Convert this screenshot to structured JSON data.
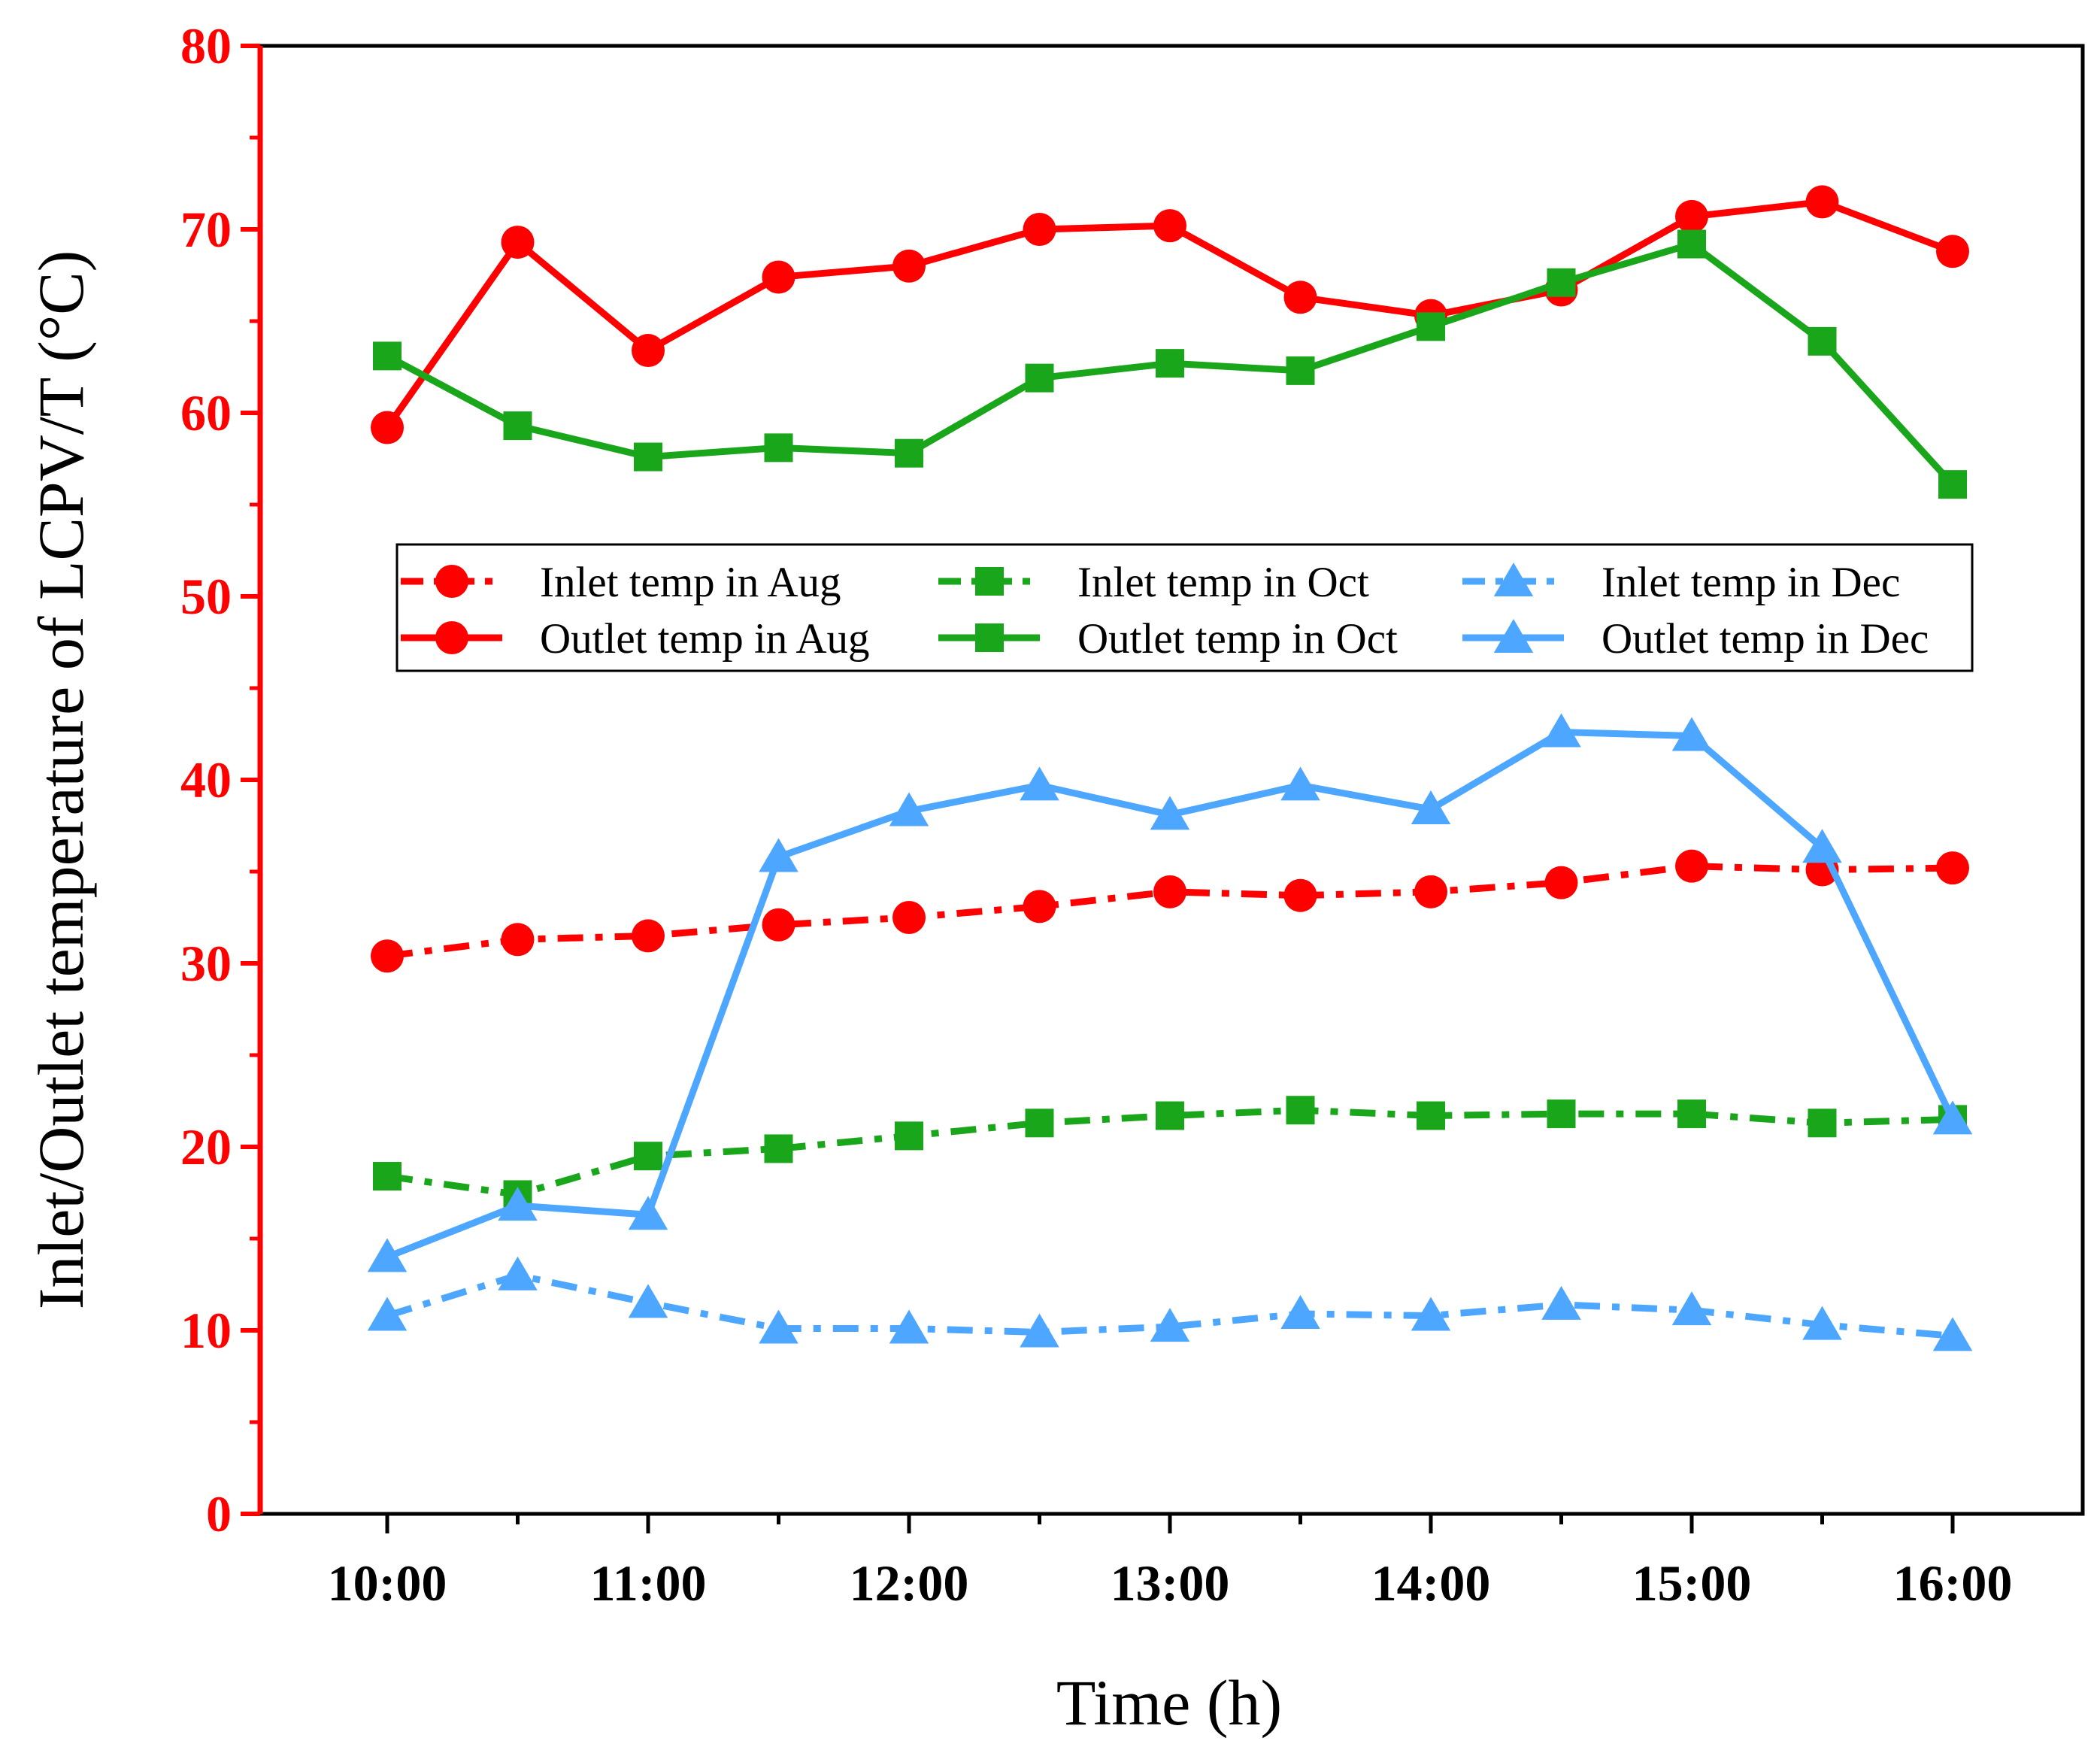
{
  "chart_data": {
    "type": "line",
    "xlabel": "Time (h)",
    "ylabel": "Inlet/Outlet temperature of LCPV/T  (°C)",
    "x": [
      "10:00",
      "10:30",
      "11:00",
      "11:30",
      "12:00",
      "12:30",
      "13:00",
      "13:30",
      "14:00",
      "14:30",
      "15:00",
      "15:30",
      "16:00"
    ],
    "x_tick_labels": [
      "10:00",
      "11:00",
      "12:00",
      "13:00",
      "14:00",
      "15:00",
      "16:00"
    ],
    "ylim": [
      0,
      80
    ],
    "y_ticks": [
      0,
      10,
      20,
      30,
      40,
      50,
      60,
      70,
      80
    ],
    "legend_position": "center",
    "grid": false,
    "series": [
      {
        "name": "Inlet temp in Aug",
        "color": "#ff0000",
        "style": "dashdot",
        "marker": "circle",
        "values": [
          30.4,
          31.3,
          31.5,
          32.1,
          32.5,
          33.1,
          33.9,
          33.7,
          33.9,
          34.4,
          35.3,
          35.1,
          35.2
        ]
      },
      {
        "name": "Inlet temp in Oct",
        "color": "#1aa61a",
        "style": "dashdot",
        "marker": "square",
        "values": [
          18.4,
          17.4,
          19.5,
          19.9,
          20.6,
          21.3,
          21.7,
          22.0,
          21.7,
          21.8,
          21.8,
          21.3,
          21.5
        ]
      },
      {
        "name": "Inlet temp in Dec",
        "color": "#4da6ff",
        "style": "dashdot",
        "marker": "triangle",
        "values": [
          10.8,
          13.0,
          11.5,
          10.1,
          10.1,
          9.9,
          10.2,
          10.9,
          10.8,
          11.4,
          11.1,
          10.3,
          9.7
        ]
      },
      {
        "name": "Outlet temp in Aug",
        "color": "#ff0000",
        "style": "solid",
        "marker": "circle",
        "values": [
          59.2,
          69.3,
          63.4,
          67.4,
          68.0,
          70.0,
          70.2,
          66.3,
          65.3,
          66.7,
          70.7,
          71.5,
          68.8
        ]
      },
      {
        "name": "Outlet temp in Oct",
        "color": "#1aa61a",
        "style": "solid",
        "marker": "square",
        "values": [
          63.1,
          59.3,
          57.6,
          58.1,
          57.8,
          61.9,
          62.7,
          62.3,
          64.7,
          67.1,
          69.2,
          63.9,
          56.1
        ]
      },
      {
        "name": "Outlet temp in Dec",
        "color": "#4da6ff",
        "style": "solid",
        "marker": "triangle",
        "values": [
          14.0,
          16.8,
          16.3,
          35.8,
          38.3,
          39.7,
          38.1,
          39.7,
          38.4,
          42.6,
          42.4,
          36.3,
          21.5
        ]
      }
    ]
  }
}
